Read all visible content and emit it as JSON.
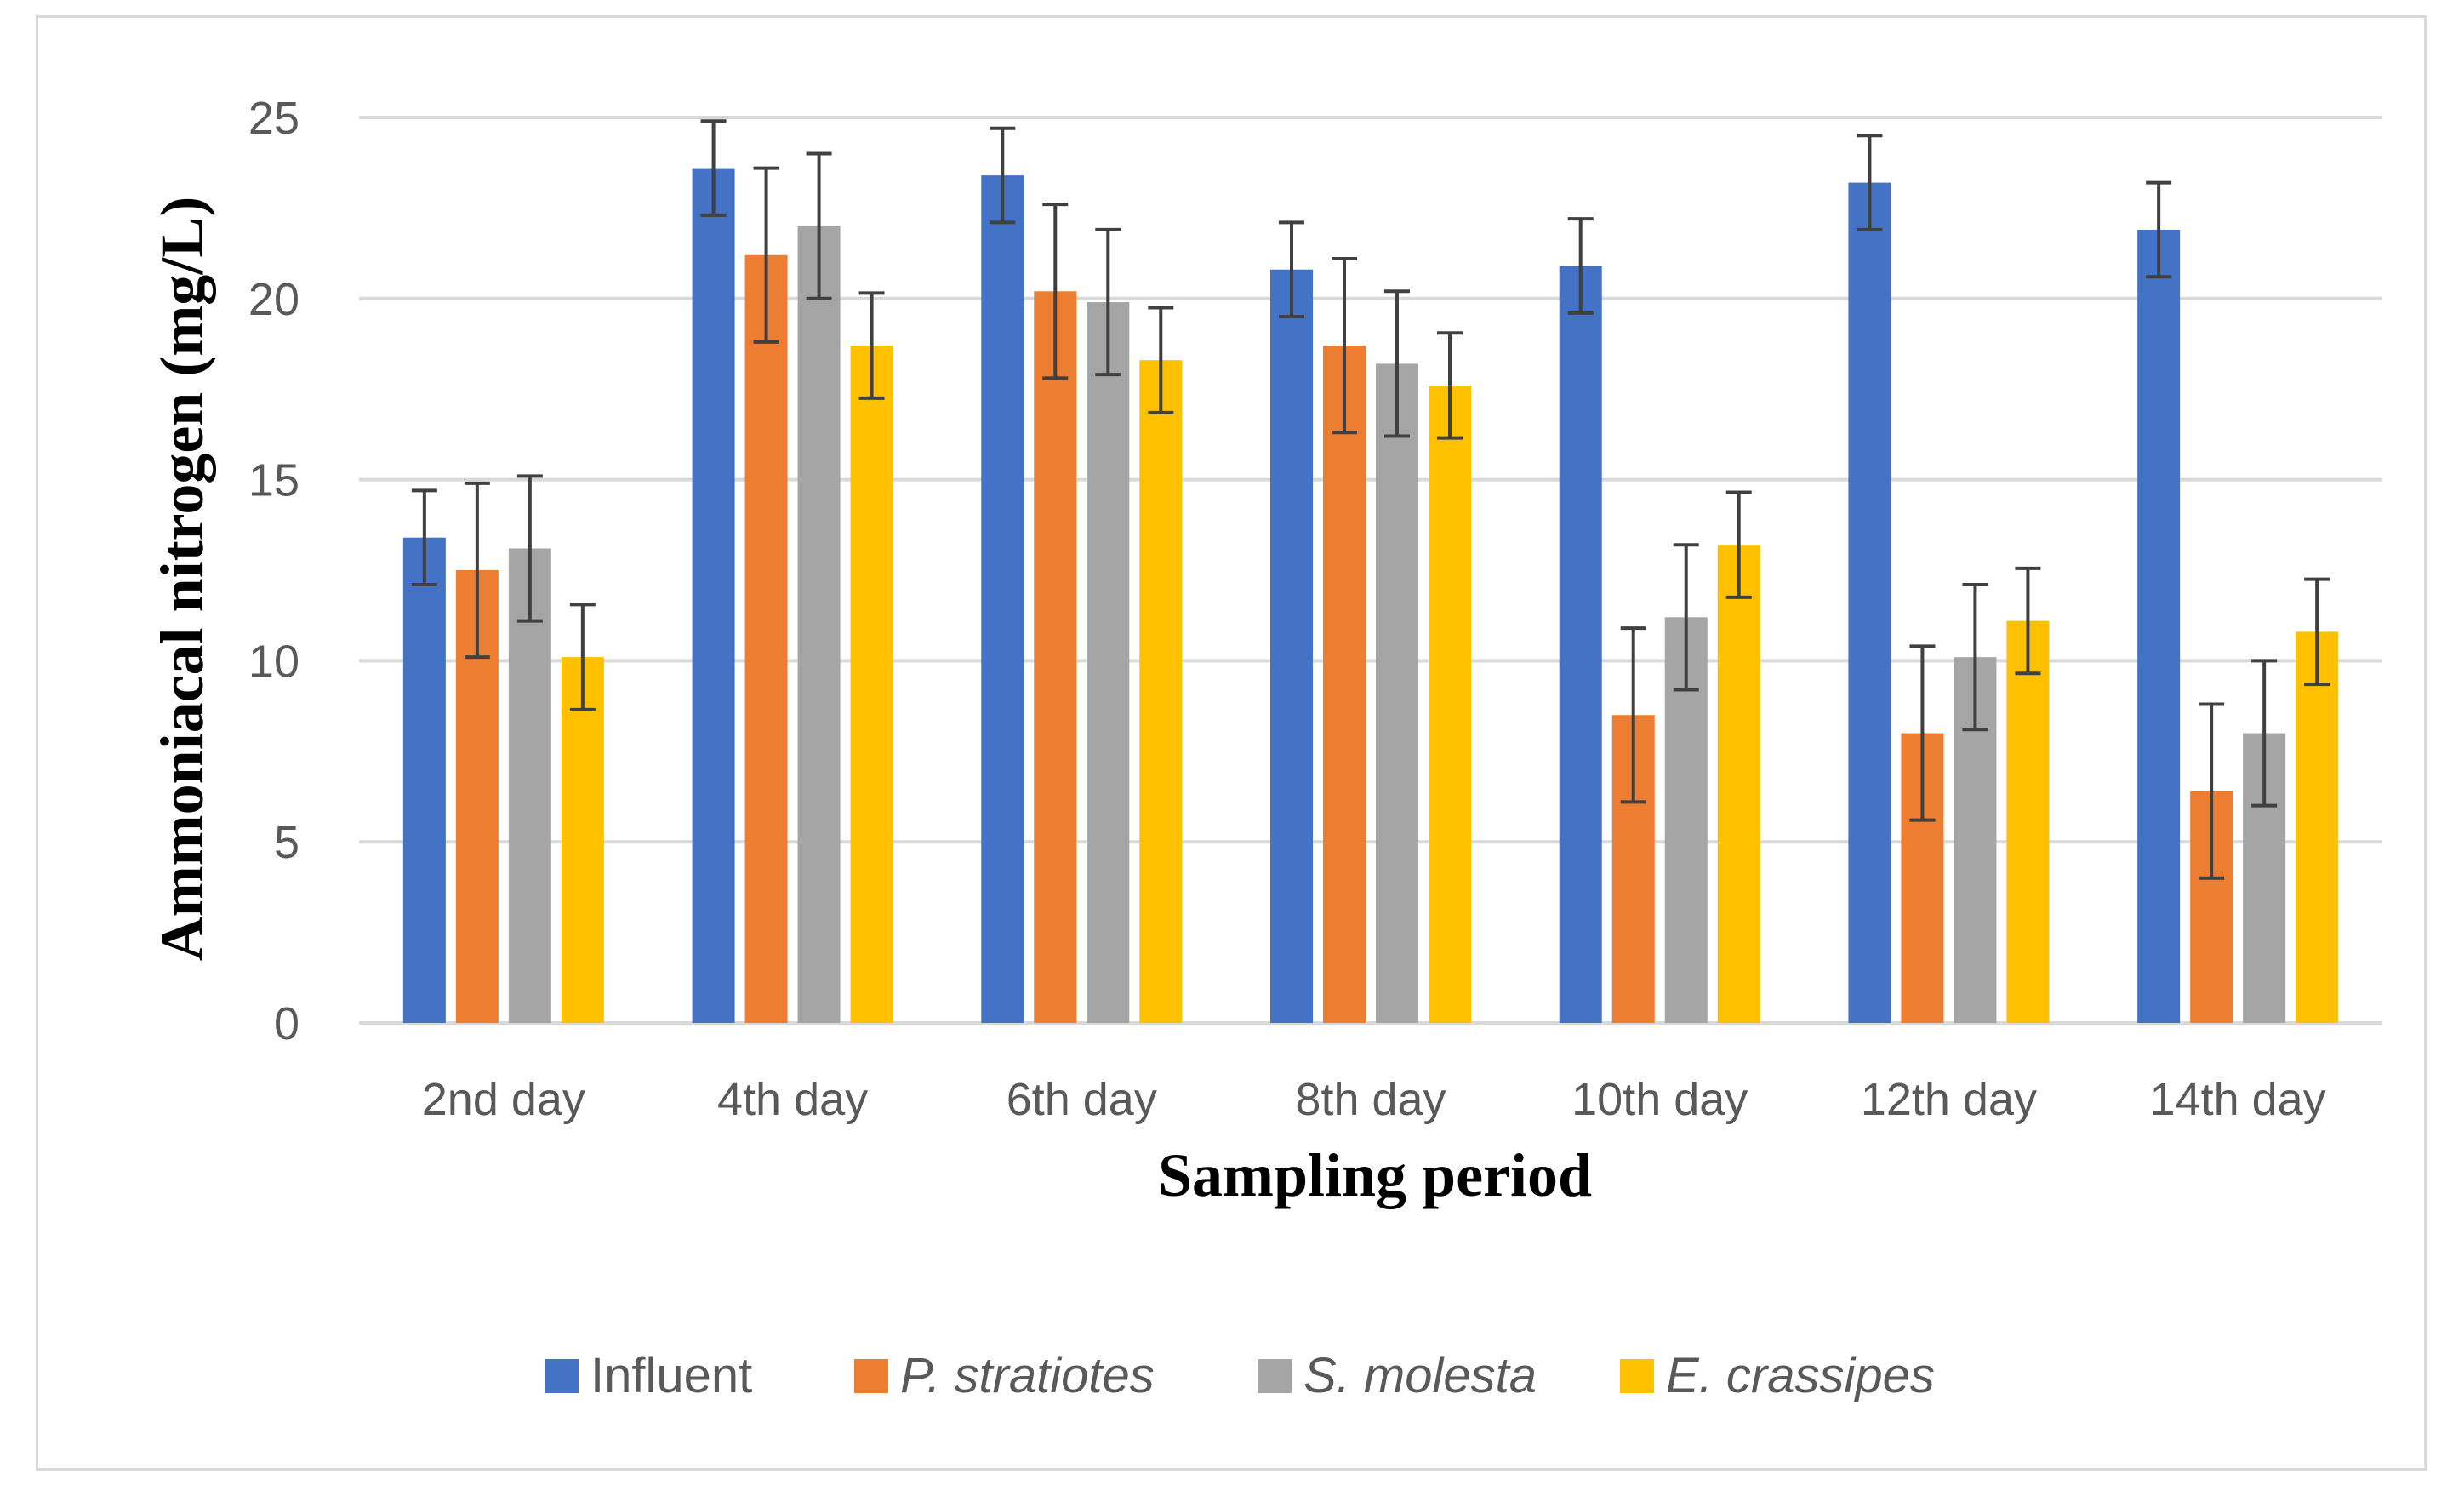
{
  "chart_data": {
    "type": "bar",
    "title": "",
    "xlabel": "Sampling period",
    "ylabel": "Ammoniacal nitrogen (mg/L)",
    "ylim": [
      0,
      25
    ],
    "yticks": [
      "0",
      "5",
      "10",
      "15",
      "20",
      "25"
    ],
    "grid": true,
    "legend_position": "bottom",
    "categories": [
      "2nd day",
      "4th day",
      "6th day",
      "8th day",
      "10th day",
      "12th day",
      "14th day"
    ],
    "series": [
      {
        "name": "Influent",
        "italic": false,
        "color": "#4472c4",
        "values": [
          13.4,
          23.6,
          23.4,
          20.8,
          20.9,
          23.2,
          21.9
        ],
        "errors": [
          1.3,
          1.3,
          1.3,
          1.3,
          1.3,
          1.3,
          1.3
        ]
      },
      {
        "name": "P. stratiotes",
        "italic": true,
        "color": "#ed7d31",
        "values": [
          12.5,
          21.2,
          20.2,
          18.7,
          8.5,
          8.0,
          6.4
        ],
        "errors": [
          2.4,
          2.4,
          2.4,
          2.4,
          2.4,
          2.4,
          2.4
        ]
      },
      {
        "name": "S. molesta",
        "italic": true,
        "color": "#a5a5a5",
        "values": [
          13.1,
          22.0,
          19.9,
          18.2,
          11.2,
          10.1,
          8.0
        ],
        "errors": [
          2.0,
          2.0,
          2.0,
          2.0,
          2.0,
          2.0,
          2.0
        ]
      },
      {
        "name": "E. crassipes",
        "italic": true,
        "color": "#ffc000",
        "values": [
          10.1,
          18.7,
          18.3,
          17.6,
          13.2,
          11.1,
          10.8
        ],
        "errors": [
          1.45,
          1.45,
          1.45,
          1.45,
          1.45,
          1.45,
          1.45
        ]
      }
    ]
  }
}
